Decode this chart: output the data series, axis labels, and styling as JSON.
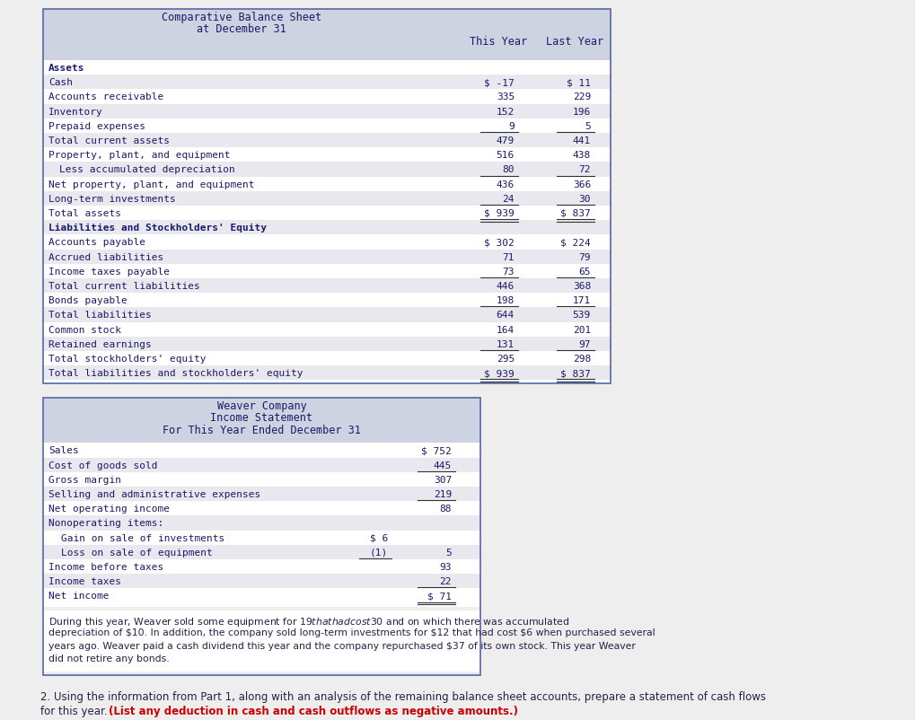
{
  "header_bg": "#cdd3e0",
  "white_bg": "#ffffff",
  "page_bg": "#eeeeee",
  "alt_row_bg": "#e8e8ee",
  "border_color": "#5566aa",
  "text_color": "#1a1a6a",
  "text_dark": "#222244",
  "red_color": "#cc0000",
  "bs_title1": "Comparative Balance Sheet",
  "bs_title2": "at December 31",
  "bs_col1": "This Year",
  "bs_col2": "Last Year",
  "bs_rows": [
    {
      "label": "Assets",
      "val1": "",
      "val2": "",
      "bold": true,
      "indent": false,
      "line_below": false,
      "dollar1": false,
      "dollar2": false,
      "double_below": false
    },
    {
      "label": "Cash",
      "val1": "$ -17",
      "val2": "$ 11",
      "bold": false,
      "indent": false,
      "line_below": false,
      "dollar1": false,
      "dollar2": false,
      "double_below": false
    },
    {
      "label": "Accounts receivable",
      "val1": "335",
      "val2": "229",
      "bold": false,
      "indent": false,
      "line_below": false,
      "dollar1": false,
      "dollar2": false,
      "double_below": false
    },
    {
      "label": "Inventory",
      "val1": "152",
      "val2": "196",
      "bold": false,
      "indent": false,
      "line_below": false,
      "dollar1": false,
      "dollar2": false,
      "double_below": false
    },
    {
      "label": "Prepaid expenses",
      "val1": "9",
      "val2": "5",
      "bold": false,
      "indent": false,
      "line_below": true,
      "dollar1": false,
      "dollar2": false,
      "double_below": false
    },
    {
      "label": "Total current assets",
      "val1": "479",
      "val2": "441",
      "bold": false,
      "indent": false,
      "line_below": false,
      "dollar1": false,
      "dollar2": false,
      "double_below": false
    },
    {
      "label": "Property, plant, and equipment",
      "val1": "516",
      "val2": "438",
      "bold": false,
      "indent": false,
      "line_below": false,
      "dollar1": false,
      "dollar2": false,
      "double_below": false
    },
    {
      "label": "  Less accumulated depreciation",
      "val1": "80",
      "val2": "72",
      "bold": false,
      "indent": true,
      "line_below": true,
      "dollar1": false,
      "dollar2": false,
      "double_below": false
    },
    {
      "label": "Net property, plant, and equipment",
      "val1": "436",
      "val2": "366",
      "bold": false,
      "indent": false,
      "line_below": false,
      "dollar1": false,
      "dollar2": false,
      "double_below": false
    },
    {
      "label": "Long-term investments",
      "val1": "24",
      "val2": "30",
      "bold": false,
      "indent": false,
      "line_below": true,
      "dollar1": false,
      "dollar2": false,
      "double_below": false
    },
    {
      "label": "Total assets",
      "val1": "$ 939",
      "val2": "$ 837",
      "bold": false,
      "indent": false,
      "line_below": true,
      "dollar1": false,
      "dollar2": false,
      "double_below": true
    },
    {
      "label": "Liabilities and Stockholders' Equity",
      "val1": "",
      "val2": "",
      "bold": true,
      "indent": false,
      "line_below": false,
      "dollar1": false,
      "dollar2": false,
      "double_below": false
    },
    {
      "label": "Accounts payable",
      "val1": "$ 302",
      "val2": "$ 224",
      "bold": false,
      "indent": false,
      "line_below": false,
      "dollar1": false,
      "dollar2": false,
      "double_below": false
    },
    {
      "label": "Accrued liabilities",
      "val1": "71",
      "val2": "79",
      "bold": false,
      "indent": false,
      "line_below": false,
      "dollar1": false,
      "dollar2": false,
      "double_below": false
    },
    {
      "label": "Income taxes payable",
      "val1": "73",
      "val2": "65",
      "bold": false,
      "indent": false,
      "line_below": true,
      "dollar1": false,
      "dollar2": false,
      "double_below": false
    },
    {
      "label": "Total current liabilities",
      "val1": "446",
      "val2": "368",
      "bold": false,
      "indent": false,
      "line_below": false,
      "dollar1": false,
      "dollar2": false,
      "double_below": false
    },
    {
      "label": "Bonds payable",
      "val1": "198",
      "val2": "171",
      "bold": false,
      "indent": false,
      "line_below": true,
      "dollar1": false,
      "dollar2": false,
      "double_below": false
    },
    {
      "label": "Total liabilities",
      "val1": "644",
      "val2": "539",
      "bold": false,
      "indent": false,
      "line_below": false,
      "dollar1": false,
      "dollar2": false,
      "double_below": false
    },
    {
      "label": "Common stock",
      "val1": "164",
      "val2": "201",
      "bold": false,
      "indent": false,
      "line_below": false,
      "dollar1": false,
      "dollar2": false,
      "double_below": false
    },
    {
      "label": "Retained earnings",
      "val1": "131",
      "val2": "97",
      "bold": false,
      "indent": false,
      "line_below": true,
      "dollar1": false,
      "dollar2": false,
      "double_below": false
    },
    {
      "label": "Total stockholders' equity",
      "val1": "295",
      "val2": "298",
      "bold": false,
      "indent": false,
      "line_below": false,
      "dollar1": false,
      "dollar2": false,
      "double_below": false
    },
    {
      "label": "Total liabilities and stockholders' equity",
      "val1": "$ 939",
      "val2": "$ 837",
      "bold": false,
      "indent": false,
      "line_below": true,
      "dollar1": false,
      "dollar2": false,
      "double_below": true
    }
  ],
  "is_title1": "Weaver Company",
  "is_title2": "Income Statement",
  "is_title3": "For This Year Ended December 31",
  "is_rows": [
    {
      "label": "Sales",
      "val_sub": "",
      "val_main": "$ 752",
      "line_below_sub": false,
      "line_below_main": false,
      "double_below": false
    },
    {
      "label": "Cost of goods sold",
      "val_sub": "",
      "val_main": "445",
      "line_below_sub": false,
      "line_below_main": true,
      "double_below": false
    },
    {
      "label": "Gross margin",
      "val_sub": "",
      "val_main": "307",
      "line_below_sub": false,
      "line_below_main": false,
      "double_below": false
    },
    {
      "label": "Selling and administrative expenses",
      "val_sub": "",
      "val_main": "219",
      "line_below_sub": false,
      "line_below_main": true,
      "double_below": false
    },
    {
      "label": "Net operating income",
      "val_sub": "",
      "val_main": "88",
      "line_below_sub": false,
      "line_below_main": false,
      "double_below": false
    },
    {
      "label": "Nonoperating items:",
      "val_sub": "",
      "val_main": "",
      "line_below_sub": false,
      "line_below_main": false,
      "double_below": false
    },
    {
      "label": "  Gain on sale of investments",
      "val_sub": "$ 6",
      "val_main": "",
      "line_below_sub": false,
      "line_below_main": false,
      "double_below": false
    },
    {
      "label": "  Loss on sale of equipment",
      "val_sub": "(1)",
      "val_main": "5",
      "line_below_sub": true,
      "line_below_main": false,
      "double_below": false
    },
    {
      "label": "Income before taxes",
      "val_sub": "",
      "val_main": "93",
      "line_below_sub": false,
      "line_below_main": false,
      "double_below": false
    },
    {
      "label": "Income taxes",
      "val_sub": "",
      "val_main": "22",
      "line_below_sub": false,
      "line_below_main": true,
      "double_below": false
    },
    {
      "label": "Net income",
      "val_sub": "",
      "val_main": "$ 71",
      "line_below_sub": false,
      "line_below_main": true,
      "double_below": true
    }
  ],
  "note_lines": [
    "During this year, Weaver sold some equipment for $19 that had cost $30 and on which there was accumulated",
    "depreciation of $10. In addition, the company sold long-term investments for $12 that had cost $6 when purchased several",
    "years ago. Weaver paid a cash dividend this year and the company repurchased $37 of its own stock. This year Weaver",
    "did not retire any bonds."
  ],
  "footer_normal": "2. Using the information from Part 1, along with an analysis of the remaining balance sheet accounts, prepare a statement of cash flows\nfor this year. ",
  "footer_bold_red": "(List any deduction in cash and cash outflows as negative amounts.)"
}
